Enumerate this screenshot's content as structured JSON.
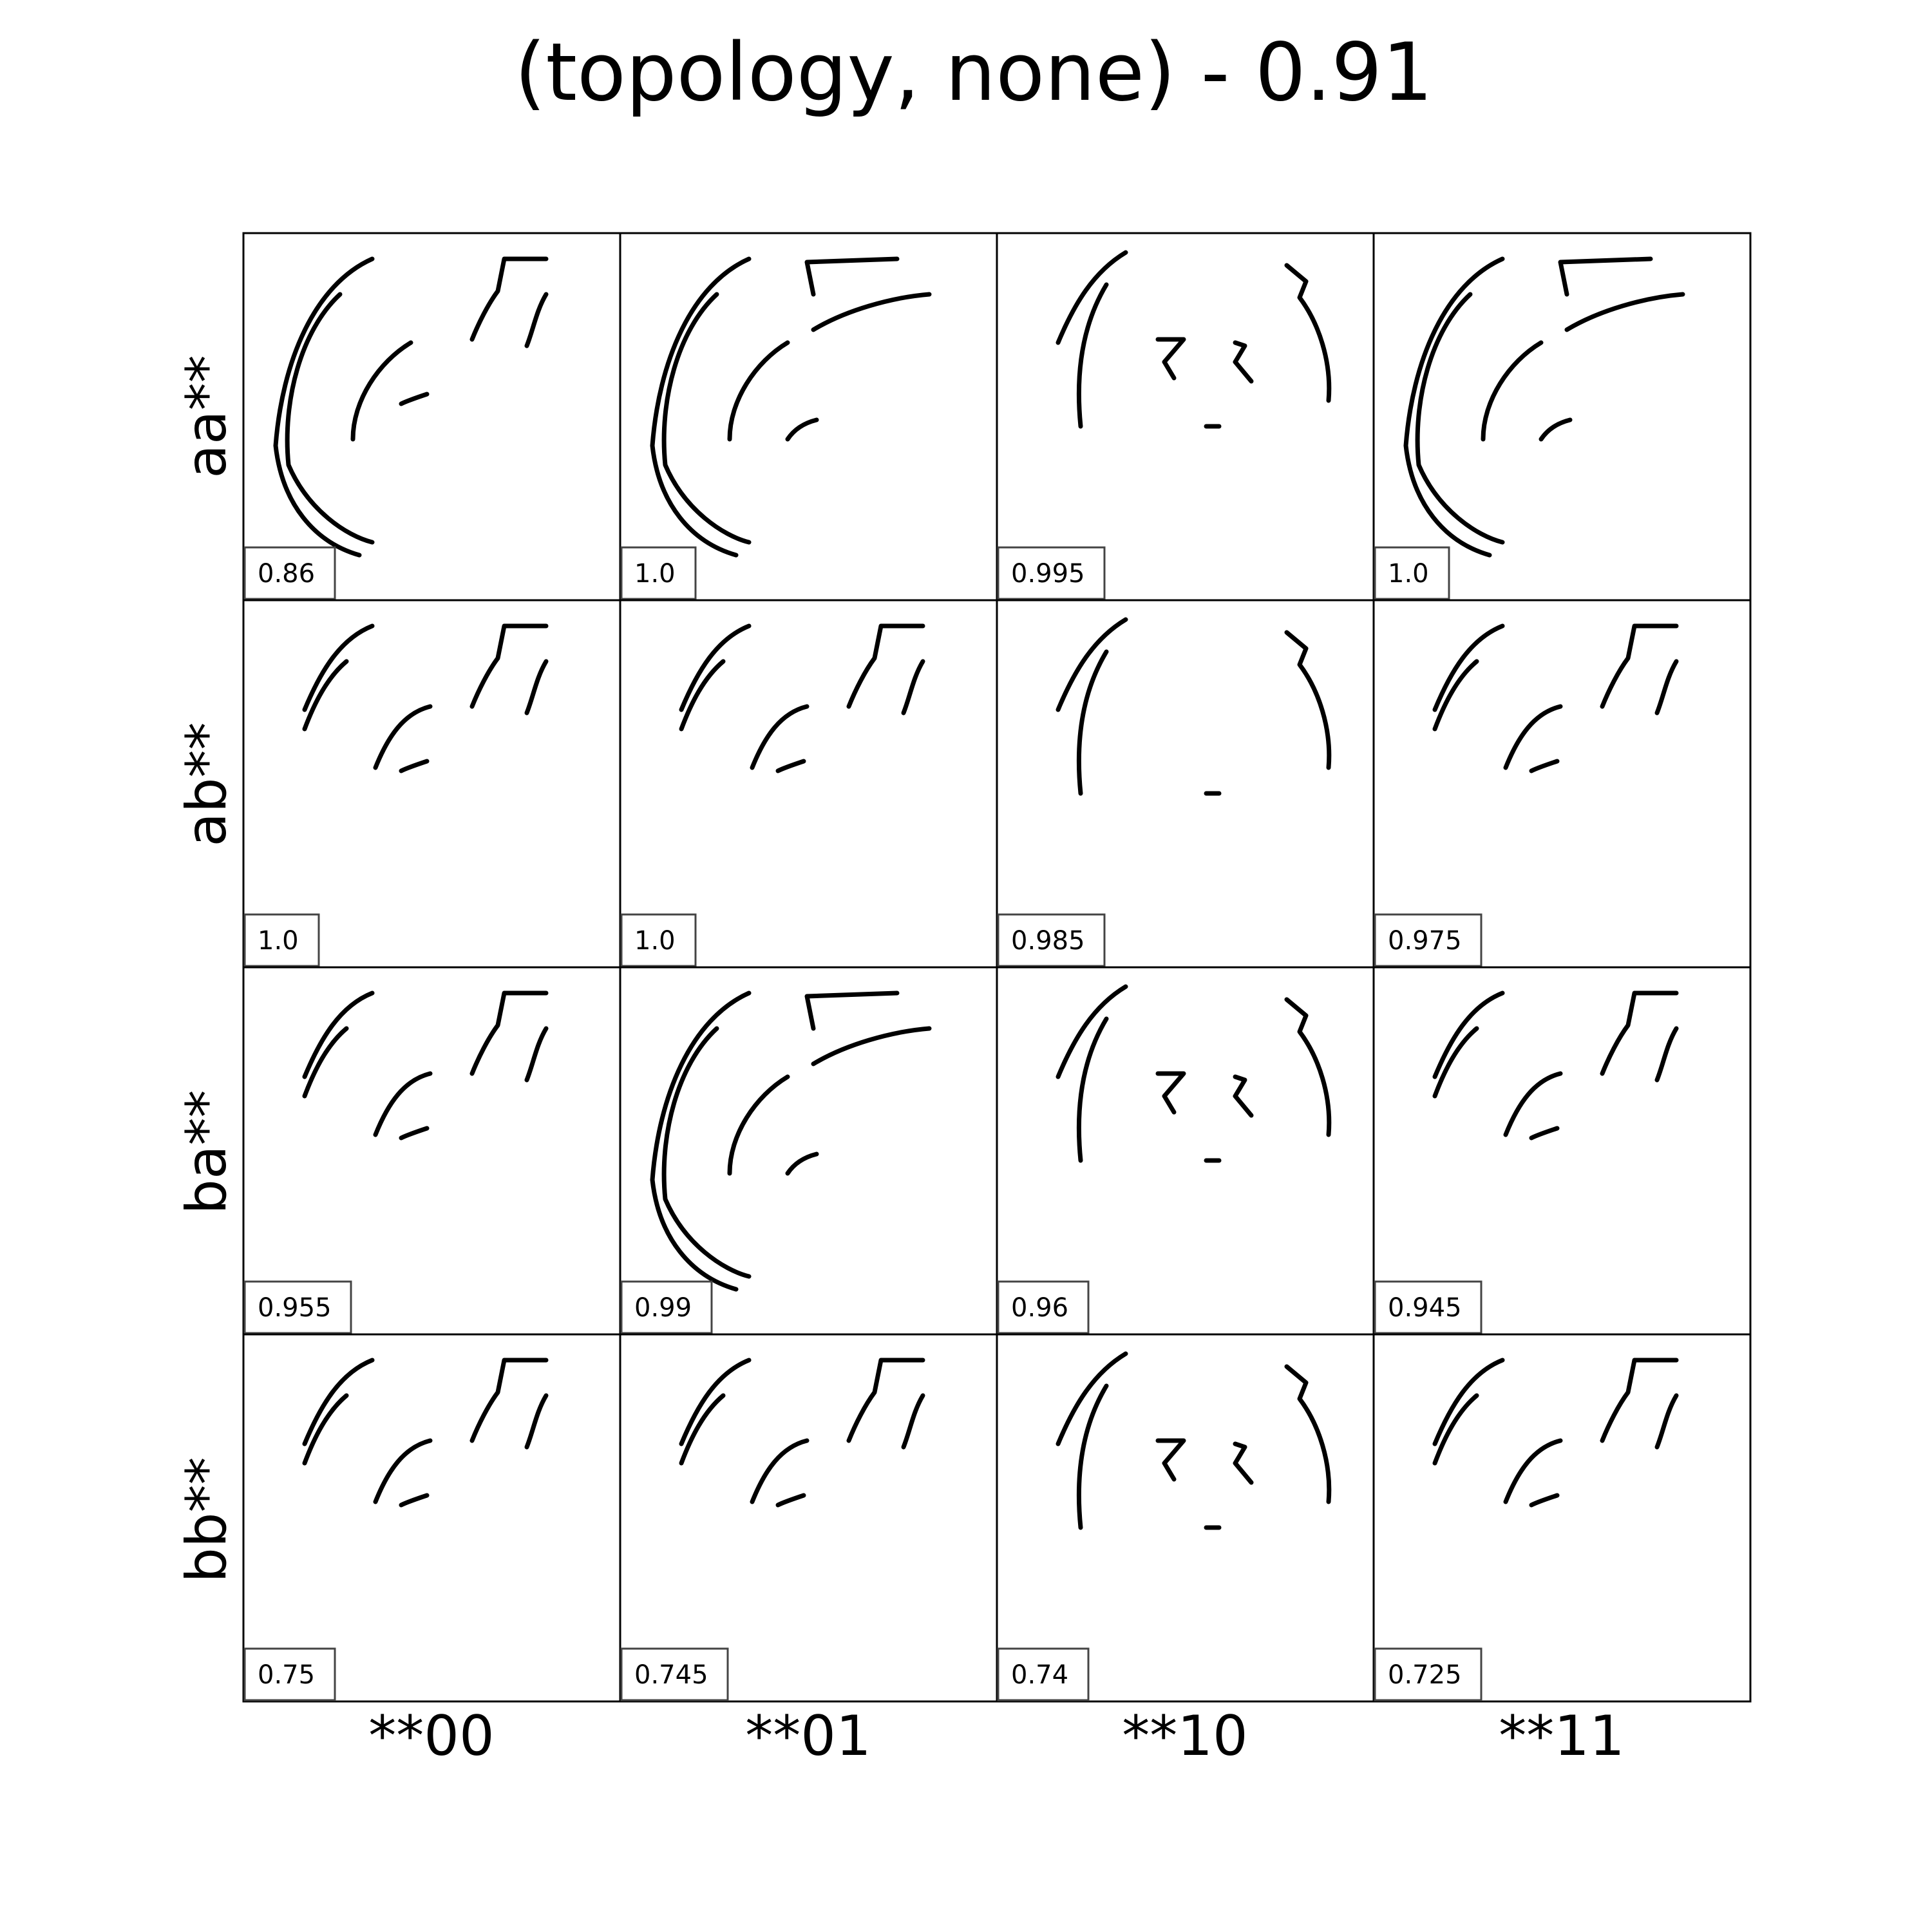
{
  "chart_data": {
    "type": "grid",
    "title": "(topology, none) - 0.91",
    "rows": [
      "aa**",
      "ab**",
      "ba**",
      "bb**"
    ],
    "columns": [
      "**00",
      "**01",
      "**10",
      "**11"
    ],
    "scores": [
      [
        "0.86",
        "1.0",
        "0.995",
        "1.0"
      ],
      [
        "1.0",
        "1.0",
        "0.985",
        "0.975"
      ],
      [
        "0.955",
        "0.99",
        "0.96",
        "0.945"
      ],
      [
        "0.75",
        "0.745",
        "0.74",
        "0.725"
      ]
    ],
    "axes": "hidden",
    "grid": false
  }
}
